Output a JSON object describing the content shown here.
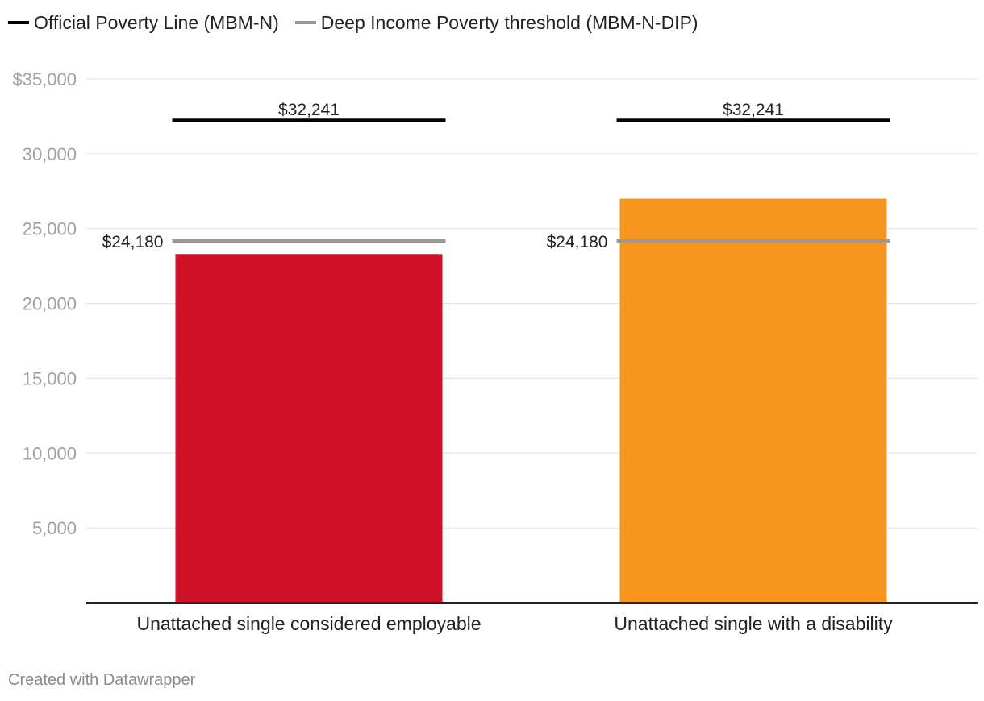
{
  "legend": {
    "official_label": "Official Poverty Line (MBM-N)",
    "deep_label": "Deep Income Poverty threshold (MBM-N-DIP)",
    "official_color": "#000000",
    "deep_color": "#999999"
  },
  "chart_data": {
    "type": "bar",
    "categories": [
      "Unattached single considered employable",
      "Unattached single with a disability"
    ],
    "values": [
      23300,
      27000
    ],
    "bar_colors": [
      "#cf1127",
      "#f7941d"
    ],
    "reference_lines": [
      {
        "name": "Official Poverty Line (MBM-N)",
        "values": [
          32241,
          32241
        ],
        "labels": [
          "$32,241",
          "$32,241"
        ],
        "color": "#000000"
      },
      {
        "name": "Deep Income Poverty threshold (MBM-N-DIP)",
        "values": [
          24180,
          24180
        ],
        "labels": [
          "$24,180",
          "$24,180"
        ],
        "color": "#999999"
      }
    ],
    "yticks": [
      {
        "value": 35000,
        "label": "$35,000"
      },
      {
        "value": 30000,
        "label": "30,000"
      },
      {
        "value": 25000,
        "label": "25,000"
      },
      {
        "value": 20000,
        "label": "20,000"
      },
      {
        "value": 15000,
        "label": "15,000"
      },
      {
        "value": 10000,
        "label": "10,000"
      },
      {
        "value": 5000,
        "label": "5,000"
      }
    ],
    "ylim": [
      0,
      35000
    ],
    "grid": true,
    "legend_position": "top-left"
  },
  "footer": "Created with Datawrapper"
}
